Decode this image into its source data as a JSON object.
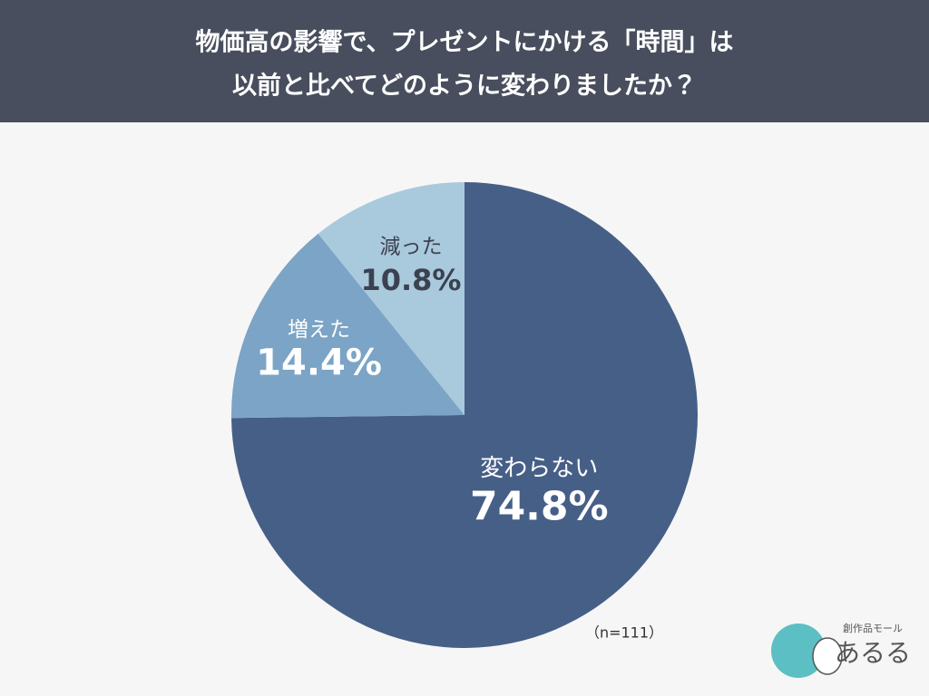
{
  "chart_data": {
    "type": "pie",
    "title": [
      "物価高の影響で、プレゼントにかける「時間」は",
      "以前と比べてどのように変わりましたか？"
    ],
    "categories": [
      "変わらない",
      "増えた",
      "減った"
    ],
    "values": [
      74.8,
      14.4,
      10.8
    ],
    "value_labels": [
      "74.8%",
      "14.4%",
      "10.8%"
    ],
    "colors": [
      "#465f87",
      "#7ba4c6",
      "#a9c9dd"
    ],
    "note": "（n=111）"
  },
  "logo": {
    "caption": "創作品モール",
    "name": "あるる"
  }
}
